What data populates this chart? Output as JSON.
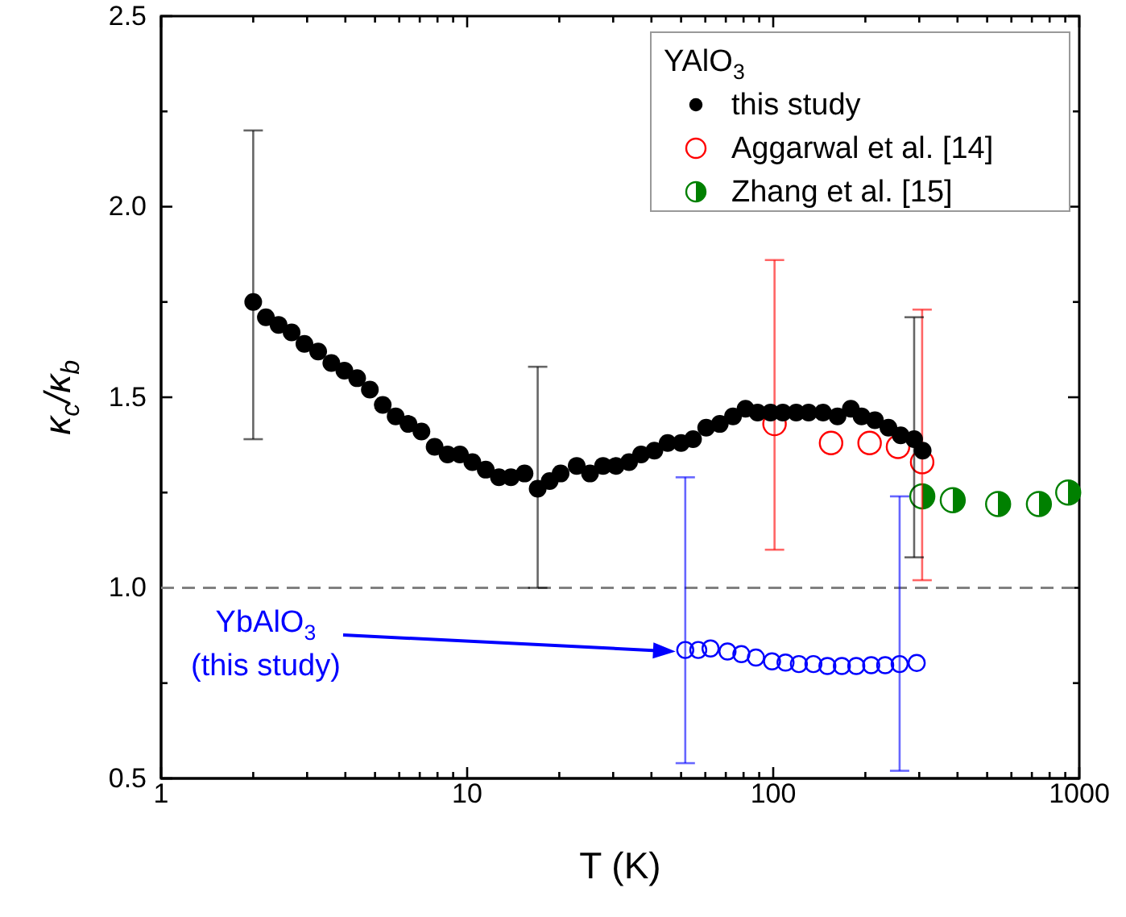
{
  "chart_data": {
    "type": "scatter",
    "xlabel": "T (K)",
    "ylabel": "κ$_{c}$/κ$_{b}$",
    "legend_title": "YAlO$_{3}$",
    "log": "x",
    "grid": false,
    "legend": "top right",
    "marker": "circle",
    "xlim": [
      1,
      1000
    ],
    "xticks": [
      1,
      {
        "value": 2,
        "label": null
      },
      {
        "value": 3,
        "label": null
      },
      {
        "value": 4,
        "label": null
      },
      {
        "value": 5,
        "label": null
      },
      {
        "value": 6,
        "label": null
      },
      {
        "value": 7,
        "label": null
      },
      {
        "value": 8,
        "label": null
      },
      {
        "value": 9,
        "label": null
      },
      10,
      {
        "value": 20,
        "label": null
      },
      {
        "value": 30,
        "label": null
      },
      {
        "value": 40,
        "label": null
      },
      {
        "value": 50,
        "label": null
      },
      {
        "value": 60,
        "label": null
      },
      {
        "value": 70,
        "label": null
      },
      {
        "value": 80,
        "label": null
      },
      {
        "value": 90,
        "label": null
      },
      100,
      {
        "value": 200,
        "label": null
      },
      {
        "value": 300,
        "label": null
      },
      {
        "value": 400,
        "label": null
      },
      {
        "value": 500,
        "label": null
      },
      {
        "value": 600,
        "label": null
      },
      {
        "value": 700,
        "label": null
      },
      {
        "value": 800,
        "label": null
      },
      {
        "value": 900,
        "label": null
      },
      1000
    ],
    "ylim": [
      0.5,
      2.5
    ],
    "yticks": [
      0.5,
      {
        "value": 0.75,
        "label": null
      },
      {
        "value": 1,
        "label": "1.0"
      },
      {
        "value": 1.25,
        "label": null
      },
      1.5,
      {
        "value": 1.75,
        "label": null
      },
      {
        "value": 2,
        "label": "2.0"
      },
      {
        "value": 2.25,
        "label": null
      },
      2.5
    ],
    "ref_lines": [
      {
        "axis": "y",
        "value": 1,
        "color": "#808080",
        "line_style": "dashed"
      }
    ],
    "annotations": [
      "YbAlO$_{3}$\n(this study)"
    ],
    "series": [
      {
        "name": "this study",
        "color": "#000000",
        "type": "scatter",
        "x": [
          2.0,
          2.2,
          2.42,
          2.67,
          2.94,
          3.26,
          3.6,
          3.97,
          4.37,
          4.81,
          5.3,
          5.84,
          6.43,
          7.09,
          7.83,
          8.63,
          9.47,
          10.4,
          11.5,
          12.7,
          13.9,
          15.4,
          17.0,
          18.6,
          20.2,
          22.8,
          25.2,
          27.8,
          30.6,
          33.8,
          37.0,
          40.9,
          45.2,
          50.0,
          54.7,
          60.4,
          66.9,
          73.9,
          81.2,
          88.9,
          98.0,
          107.5,
          118.9,
          130.5,
          145.4,
          162.2,
          179.3,
          194.4,
          214.9,
          237.9,
          260.9,
          288.7,
          307.8
        ],
        "values": [
          1.75,
          1.71,
          1.69,
          1.67,
          1.64,
          1.62,
          1.59,
          1.57,
          1.55,
          1.52,
          1.48,
          1.45,
          1.43,
          1.41,
          1.37,
          1.35,
          1.35,
          1.33,
          1.31,
          1.29,
          1.29,
          1.3,
          1.26,
          1.28,
          1.3,
          1.32,
          1.3,
          1.32,
          1.32,
          1.33,
          1.35,
          1.36,
          1.38,
          1.38,
          1.39,
          1.42,
          1.43,
          1.45,
          1.47,
          1.46,
          1.46,
          1.46,
          1.46,
          1.46,
          1.46,
          1.45,
          1.47,
          1.45,
          1.44,
          1.42,
          1.4,
          1.39,
          1.36
        ],
        "errors": [
          [
            1.39,
            2.2
          ],
          null,
          null,
          null,
          null,
          null,
          null,
          null,
          null,
          null,
          null,
          null,
          null,
          null,
          null,
          null,
          null,
          null,
          null,
          null,
          null,
          null,
          [
            1.0,
            1.58
          ],
          null,
          null,
          null,
          null,
          null,
          null,
          null,
          null,
          null,
          null,
          null,
          null,
          null,
          null,
          null,
          null,
          null,
          null,
          null,
          null,
          null,
          null,
          null,
          null,
          null,
          null,
          null,
          null,
          [
            1.08,
            1.71
          ],
          null
        ]
      },
      {
        "name": "Aggarwal et al. [14]",
        "color": "#ff0000",
        "type": "scatter",
        "x": [
          101,
          154.5,
          206.5,
          255.7,
          306.6
        ],
        "values": [
          1.43,
          1.38,
          1.38,
          1.37,
          1.33
        ],
        "errors": [
          [
            1.1,
            1.86
          ],
          null,
          null,
          null,
          [
            1.02,
            1.73
          ]
        ]
      },
      {
        "name": "Zhang et al. [15]",
        "color": "#008000",
        "type": "scatter",
        "x": [
          307,
          386,
          543,
          738,
          920
        ],
        "values": [
          1.24,
          1.23,
          1.22,
          1.22,
          1.25
        ]
      },
      {
        "color": "#0000ff",
        "type": "scatter",
        "x": [
          51.6,
          56.9,
          62.4,
          70.9,
          78.7,
          87.8,
          99.1,
          109.7,
          121.3,
          135.3,
          150.3,
          167.6,
          186.8,
          209,
          232.2,
          258.8,
          294.3
        ],
        "values": [
          0.837,
          0.837,
          0.841,
          0.833,
          0.826,
          0.817,
          0.807,
          0.804,
          0.8,
          0.8,
          0.795,
          0.795,
          0.795,
          0.797,
          0.797,
          0.8,
          0.803
        ],
        "errors": [
          [
            0.54,
            1.29
          ],
          null,
          null,
          null,
          null,
          null,
          null,
          null,
          null,
          null,
          null,
          null,
          null,
          null,
          null,
          [
            0.52,
            1.24
          ],
          null
        ]
      }
    ]
  }
}
